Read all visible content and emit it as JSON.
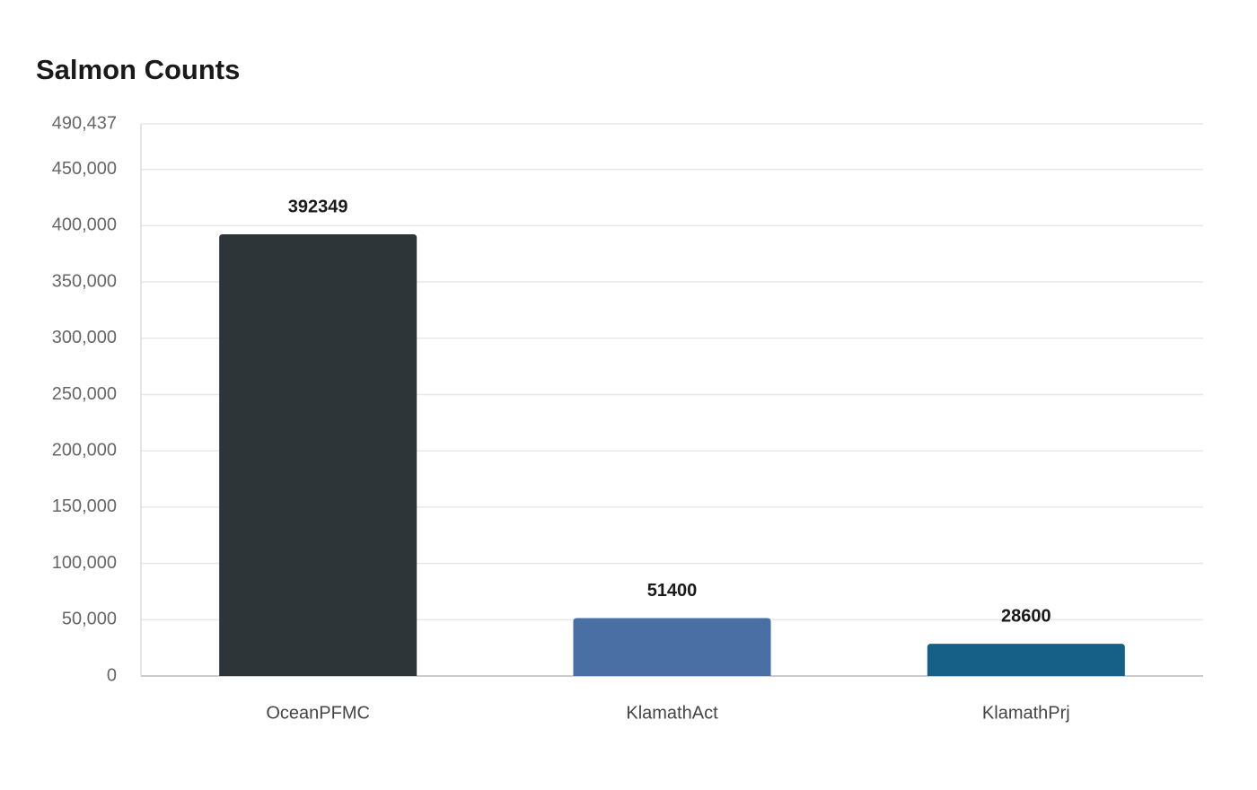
{
  "chart_data": {
    "type": "bar",
    "title": "Salmon Counts",
    "categories": [
      "OceanPFMC",
      "KlamathAct",
      "KlamathPrj"
    ],
    "values": [
      392349,
      51400,
      28600
    ],
    "colors": [
      "#2e3538",
      "#4a6fa5",
      "#166088"
    ],
    "ylim": [
      0,
      490437
    ],
    "yticks": [
      0,
      {
        "value": 50000,
        "label": "50,000"
      },
      {
        "value": 100000,
        "label": "100,000"
      },
      {
        "value": 150000,
        "label": "150,000"
      },
      {
        "value": 200000,
        "label": "200,000"
      },
      {
        "value": 250000,
        "label": "250,000"
      },
      {
        "value": 300000,
        "label": "300,000"
      },
      {
        "value": 350000,
        "label": "350,000"
      },
      {
        "value": 400000,
        "label": "400,000"
      },
      {
        "value": 450000,
        "label": "450,000"
      },
      {
        "value": 490437,
        "label": "490,437"
      }
    ],
    "grid": true
  }
}
